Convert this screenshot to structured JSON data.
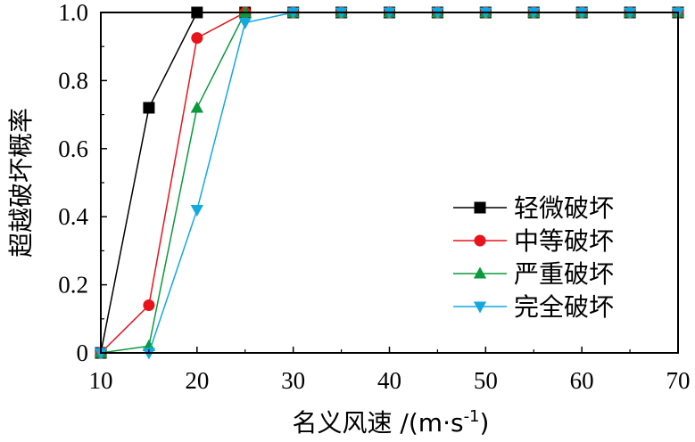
{
  "chart_data": {
    "type": "line",
    "title": "",
    "xlabel": "名义风速 /(m·s",
    "xlabel_sup": "-1",
    "xlabel_end": ")",
    "ylabel": "超越破坏概率",
    "xlim": [
      10,
      70
    ],
    "ylim": [
      0,
      1.0
    ],
    "x_ticks": [
      10,
      20,
      30,
      40,
      50,
      60,
      70
    ],
    "x_tick_labels": [
      "10",
      "20",
      "30",
      "40",
      "50",
      "60",
      "70"
    ],
    "y_ticks": [
      0,
      0.2,
      0.4,
      0.6,
      0.8,
      1.0
    ],
    "y_tick_labels": [
      "0",
      "0.2",
      "0.4",
      "0.6",
      "0.8",
      "1.0"
    ],
    "grid": false,
    "legend_position": "center-right",
    "x": [
      10,
      15,
      20,
      25,
      30,
      35,
      40,
      45,
      50,
      55,
      60,
      65,
      70
    ],
    "series": [
      {
        "name": "轻微破坏",
        "color": "#000000",
        "marker": "square",
        "values": [
          0,
          0.72,
          1.0,
          1.0,
          1.0,
          1.0,
          1.0,
          1.0,
          1.0,
          1.0,
          1.0,
          1.0,
          1.0
        ]
      },
      {
        "name": "中等破坏",
        "color": "#e8141c",
        "marker": "circle",
        "values": [
          0,
          0.14,
          0.925,
          1.0,
          1.0,
          1.0,
          1.0,
          1.0,
          1.0,
          1.0,
          1.0,
          1.0,
          1.0
        ]
      },
      {
        "name": "严重破坏",
        "color": "#0a9a3c",
        "marker": "triangle-up",
        "values": [
          0,
          0.02,
          0.72,
          1.0,
          1.0,
          1.0,
          1.0,
          1.0,
          1.0,
          1.0,
          1.0,
          1.0,
          1.0
        ]
      },
      {
        "name": "完全破坏",
        "color": "#14a8e0",
        "marker": "triangle-down",
        "values": [
          0,
          0.0,
          0.42,
          0.97,
          1.0,
          1.0,
          1.0,
          1.0,
          1.0,
          1.0,
          1.0,
          1.0,
          1.0
        ]
      }
    ]
  }
}
